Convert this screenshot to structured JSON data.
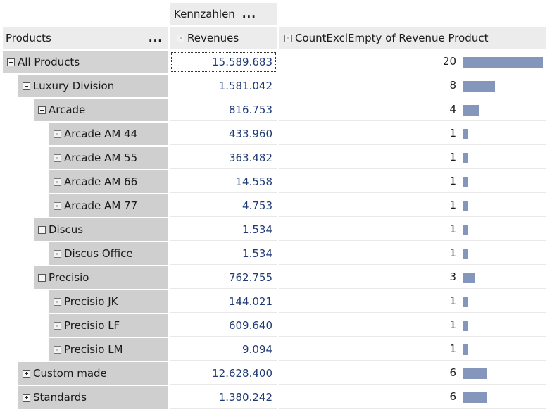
{
  "header": {
    "measures_dim": "Kennzahlen",
    "measures_dots": "...",
    "rows_dim": "Products",
    "rows_dots": "...",
    "col_revenues": "Revenues",
    "col_count": "CountExclEmpty of Revenue Product"
  },
  "rows": [
    {
      "label": "All Products",
      "toggle": "minus",
      "revenues": "15.589.683",
      "count": "20",
      "count_value": 20
    },
    {
      "label": "Luxury Division",
      "toggle": "minus",
      "revenues": "1.581.042",
      "count": "8",
      "count_value": 8
    },
    {
      "label": "Arcade",
      "toggle": "minus",
      "revenues": "816.753",
      "count": "4",
      "count_value": 4
    },
    {
      "label": "Arcade AM 44",
      "toggle": "leaf",
      "revenues": "433.960",
      "count": "1",
      "count_value": 1
    },
    {
      "label": "Arcade AM 55",
      "toggle": "leaf",
      "revenues": "363.482",
      "count": "1",
      "count_value": 1
    },
    {
      "label": "Arcade AM 66",
      "toggle": "leaf",
      "revenues": "14.558",
      "count": "1",
      "count_value": 1
    },
    {
      "label": "Arcade AM 77",
      "toggle": "leaf",
      "revenues": "4.753",
      "count": "1",
      "count_value": 1
    },
    {
      "label": "Discus",
      "toggle": "minus",
      "revenues": "1.534",
      "count": "1",
      "count_value": 1
    },
    {
      "label": "Discus Office",
      "toggle": "leaf",
      "revenues": "1.534",
      "count": "1",
      "count_value": 1
    },
    {
      "label": "Precisio",
      "toggle": "minus",
      "revenues": "762.755",
      "count": "3",
      "count_value": 3
    },
    {
      "label": "Precisio JK",
      "toggle": "leaf",
      "revenues": "144.021",
      "count": "1",
      "count_value": 1
    },
    {
      "label": "Precisio LF",
      "toggle": "leaf",
      "revenues": "609.640",
      "count": "1",
      "count_value": 1
    },
    {
      "label": "Precisio LM",
      "toggle": "leaf",
      "revenues": "9.094",
      "count": "1",
      "count_value": 1
    },
    {
      "label": "Custom made",
      "toggle": "plus",
      "revenues": "12.628.400",
      "count": "6",
      "count_value": 6
    },
    {
      "label": "Standards",
      "toggle": "plus",
      "revenues": "1.380.242",
      "count": "6",
      "count_value": 6
    }
  ],
  "colors": {
    "bar": "#8496bb",
    "value_text": "#1f3a75"
  }
}
